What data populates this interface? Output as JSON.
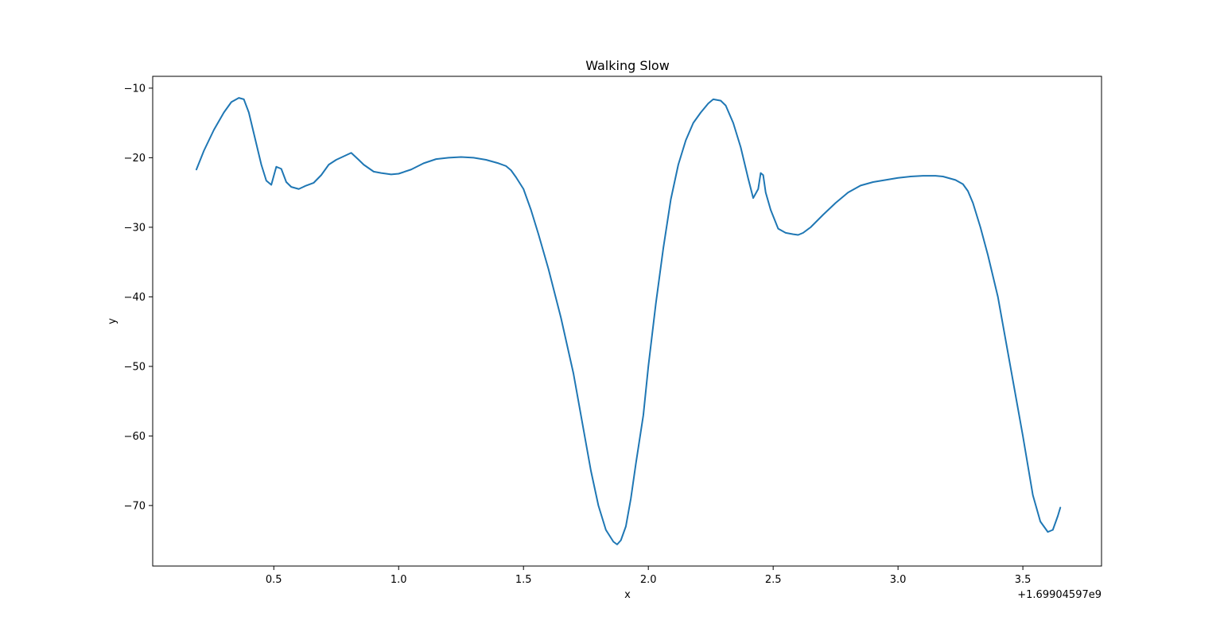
{
  "chart_data": {
    "type": "line",
    "title": "Walking Slow",
    "xlabel": "x",
    "ylabel": "y",
    "x_offset_label": "+1.69904597e9",
    "xlim": [
      0.015,
      3.815
    ],
    "ylim": [
      -78.7,
      -8.3
    ],
    "x_ticks": [
      0.5,
      1.0,
      1.5,
      2.0,
      2.5,
      3.0,
      3.5
    ],
    "x_tick_labels": [
      "0.5",
      "1.0",
      "1.5",
      "2.0",
      "2.5",
      "3.0",
      "3.5"
    ],
    "y_ticks": [
      -10,
      -20,
      -30,
      -40,
      -50,
      -60,
      -70
    ],
    "y_tick_labels": [
      "−10",
      "−20",
      "−30",
      "−40",
      "−50",
      "−60",
      "−70"
    ],
    "grid": false,
    "color": "#1f77b4",
    "series": [
      {
        "x": [
          0.19,
          0.22,
          0.26,
          0.3,
          0.33,
          0.36,
          0.38,
          0.4,
          0.42,
          0.45,
          0.47,
          0.49,
          0.51,
          0.53,
          0.55,
          0.57,
          0.6,
          0.63,
          0.66,
          0.69,
          0.72,
          0.75,
          0.78,
          0.81,
          0.84,
          0.86,
          0.88,
          0.9,
          0.93,
          0.97,
          1.0,
          1.05,
          1.1,
          1.15,
          1.2,
          1.25,
          1.3,
          1.35,
          1.4,
          1.43,
          1.45,
          1.47,
          1.5,
          1.53,
          1.56,
          1.6,
          1.65,
          1.7,
          1.74,
          1.77,
          1.8,
          1.83,
          1.86,
          1.875,
          1.89,
          1.91,
          1.93,
          1.95,
          1.98,
          2.0,
          2.03,
          2.06,
          2.09,
          2.12,
          2.15,
          2.18,
          2.21,
          2.24,
          2.26,
          2.29,
          2.31,
          2.34,
          2.37,
          2.4,
          2.42,
          2.44,
          2.45,
          2.46,
          2.47,
          2.49,
          2.52,
          2.55,
          2.58,
          2.6,
          2.62,
          2.65,
          2.7,
          2.75,
          2.8,
          2.85,
          2.9,
          2.95,
          3.0,
          3.05,
          3.1,
          3.15,
          3.18,
          3.2,
          3.23,
          3.26,
          3.28,
          3.3,
          3.33,
          3.36,
          3.4,
          3.45,
          3.5,
          3.54,
          3.57,
          3.6,
          3.62,
          3.64,
          3.65
        ],
        "y": [
          -21.7,
          -19.0,
          -16.0,
          -13.5,
          -12.0,
          -11.4,
          -11.6,
          -13.5,
          -16.5,
          -21.0,
          -23.3,
          -23.9,
          -21.3,
          -21.6,
          -23.5,
          -24.2,
          -24.5,
          -24.0,
          -23.6,
          -22.5,
          -21.0,
          -20.3,
          -19.8,
          -19.3,
          -20.3,
          -21.0,
          -21.5,
          -22.0,
          -22.2,
          -22.4,
          -22.3,
          -21.7,
          -20.8,
          -20.2,
          -20.0,
          -19.9,
          -20.0,
          -20.3,
          -20.8,
          -21.2,
          -21.8,
          -22.8,
          -24.5,
          -27.5,
          -31.0,
          -36.0,
          -43.0,
          -51.0,
          -59.0,
          -65.0,
          -70.0,
          -73.5,
          -75.2,
          -75.6,
          -75.0,
          -73.0,
          -69.0,
          -64.0,
          -57.0,
          -50.0,
          -41.0,
          -33.0,
          -26.0,
          -21.0,
          -17.5,
          -15.0,
          -13.5,
          -12.2,
          -11.6,
          -11.8,
          -12.5,
          -15.0,
          -18.5,
          -23.0,
          -25.8,
          -24.5,
          -22.2,
          -22.5,
          -25.0,
          -27.5,
          -30.2,
          -30.8,
          -31.0,
          -31.1,
          -30.8,
          -30.0,
          -28.2,
          -26.5,
          -25.0,
          -24.0,
          -23.5,
          -23.2,
          -22.9,
          -22.7,
          -22.6,
          -22.6,
          -22.7,
          -22.9,
          -23.2,
          -23.8,
          -24.8,
          -26.5,
          -30.0,
          -34.0,
          -40.0,
          -50.0,
          -60.0,
          -68.5,
          -72.3,
          -73.8,
          -73.5,
          -71.5,
          -70.3
        ]
      }
    ]
  }
}
